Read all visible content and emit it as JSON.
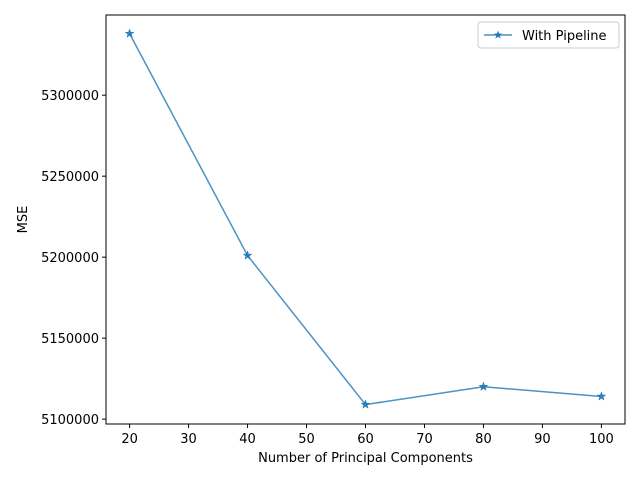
{
  "chart_data": {
    "type": "line",
    "title": "",
    "xlabel": "Number of Principal Components",
    "ylabel": "MSE",
    "x": [
      20,
      40,
      60,
      80,
      100
    ],
    "series": [
      {
        "name": "With Pipeline",
        "values": [
          5338000,
          5201000,
          5109000,
          5120000,
          5114000
        ],
        "color": "#1f77b4",
        "marker": "star"
      }
    ],
    "xlim": [
      16,
      104
    ],
    "ylim": [
      5097000,
      5349500
    ],
    "xticks": [
      20,
      30,
      40,
      50,
      60,
      70,
      80,
      90,
      100
    ],
    "yticks": [
      5100000,
      5150000,
      5200000,
      5250000,
      5300000
    ],
    "xtick_labels": [
      "20",
      "30",
      "40",
      "50",
      "60",
      "70",
      "80",
      "90",
      "100"
    ],
    "ytick_labels": [
      "5100000",
      "5150000",
      "5200000",
      "5250000",
      "5300000"
    ],
    "grid": false,
    "legend_position": "upper right"
  }
}
